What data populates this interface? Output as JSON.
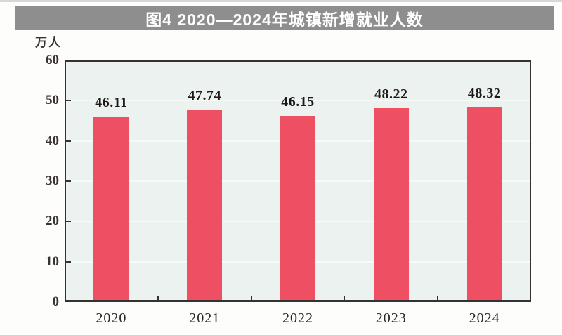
{
  "banner": {
    "title": "图4 2020—2024年城镇新增就业人数"
  },
  "chart_data": {
    "type": "bar",
    "title": "图4 2020—2024年城镇新增就业人数",
    "unit_label": "万人",
    "categories": [
      "2020",
      "2021",
      "2022",
      "2023",
      "2024"
    ],
    "values": [
      46.11,
      47.74,
      46.15,
      48.22,
      48.32
    ],
    "value_labels": [
      "46.11",
      "47.74",
      "46.15",
      "48.22",
      "48.32"
    ],
    "xlabel": "",
    "ylabel": "万人",
    "ylim": [
      0,
      60
    ],
    "yticks": [
      0,
      10,
      20,
      30,
      40,
      50,
      60
    ],
    "grid": true,
    "legend_position": "none",
    "colors": {
      "bar": "#ee4f62",
      "plot_bg": "#ecf2ef",
      "grid": "#f7fbf8",
      "axis": "#333333",
      "banner_bg": "#8e8e8e",
      "banner_text": "#ffffff",
      "tick_text": "#3a332e",
      "value_text": "#1c1a17",
      "year_text": "#2b2622",
      "page_bg": "#fdfdfc"
    }
  }
}
